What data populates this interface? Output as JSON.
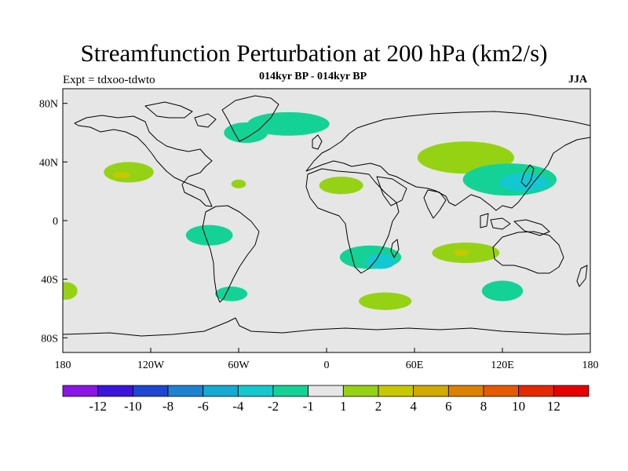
{
  "title": "Streamfunction Perturbation at 200 hPa (km2/s)",
  "subtitle": "014kyr BP - 014kyr BP",
  "experiment": "Expt = tdxoo-tdwto",
  "season": "JJA",
  "map": {
    "projection": "cylindrical equidistant",
    "lon_range": [
      -180,
      180
    ],
    "lat_range": [
      -90,
      90
    ],
    "lon_ticks": [
      "180",
      "120W",
      "60W",
      "0",
      "60E",
      "120E",
      "180"
    ],
    "lat_ticks": [
      "80N",
      "40N",
      "0",
      "40S",
      "80S"
    ],
    "background_color": "#e6e6e6",
    "coastline_color": "#000000"
  },
  "colorbar": {
    "colors": [
      "#8c14e6",
      "#3c14dc",
      "#1e46d2",
      "#1e82d2",
      "#14aad2",
      "#14c8d2",
      "#14d296",
      "#e6e6e6",
      "#96d214",
      "#c8c800",
      "#d2aa00",
      "#dc8200",
      "#e65a00",
      "#e62800",
      "#e60000"
    ],
    "labels": [
      "-12",
      "-10",
      "-8",
      "-6",
      "-4",
      "-2",
      "-1",
      "1",
      "2",
      "4",
      "6",
      "8",
      "10",
      "12"
    ]
  },
  "anomaly_regions": [
    {
      "name": "north-atlantic-negative",
      "level": -1,
      "lon": -26,
      "lat": 66,
      "rx": 28,
      "ry": 8
    },
    {
      "name": "greenland-sea-negative",
      "level": -1,
      "lon": -55,
      "lat": 60,
      "rx": 15,
      "ry": 7
    },
    {
      "name": "north-pacific-positive",
      "level": 1,
      "lon": -135,
      "lat": 33,
      "rx": 17,
      "ry": 7
    },
    {
      "name": "north-pacific-core",
      "level": 2,
      "lon": -140,
      "lat": 31,
      "rx": 6,
      "ry": 2
    },
    {
      "name": "sahara-positive",
      "level": 1,
      "lon": 10,
      "lat": 24,
      "rx": 15,
      "ry": 6
    },
    {
      "name": "asia-positive",
      "level": 1,
      "lon": 95,
      "lat": 43,
      "rx": 33,
      "ry": 11
    },
    {
      "name": "east-asia-negative",
      "level": -1,
      "lon": 125,
      "lat": 28,
      "rx": 32,
      "ry": 11
    },
    {
      "name": "east-asia-core",
      "level": -2,
      "lon": 135,
      "lat": 26,
      "rx": 17,
      "ry": 6
    },
    {
      "name": "south-america-negative",
      "level": -1,
      "lon": -80,
      "lat": -10,
      "rx": 16,
      "ry": 7
    },
    {
      "name": "south-africa-negative",
      "level": -1,
      "lon": 30,
      "lat": -25,
      "rx": 21,
      "ry": 8
    },
    {
      "name": "south-africa-core",
      "level": -2,
      "lon": 37,
      "lat": -28,
      "rx": 10,
      "ry": 5
    },
    {
      "name": "south-indian-ocean-positive",
      "level": 1,
      "lon": 95,
      "lat": -22,
      "rx": 23,
      "ry": 7
    },
    {
      "name": "south-indian-ocean-core",
      "level": 2,
      "lon": 92,
      "lat": -22,
      "rx": 5,
      "ry": 2
    },
    {
      "name": "southern-ocean-positive",
      "level": 1,
      "lon": 40,
      "lat": -55,
      "rx": 18,
      "ry": 6
    },
    {
      "name": "south-pacific-negative",
      "level": -1,
      "lon": -65,
      "lat": -50,
      "rx": 11,
      "ry": 5
    },
    {
      "name": "australia-south-negative",
      "level": -1,
      "lon": 120,
      "lat": -48,
      "rx": 14,
      "ry": 7
    },
    {
      "name": "east-pacific-positive",
      "level": 1,
      "lon": -178,
      "lat": -48,
      "rx": 8,
      "ry": 6
    },
    {
      "name": "west-atlantic-positive",
      "level": 1,
      "lon": -60,
      "lat": 25,
      "rx": 5,
      "ry": 3
    }
  ]
}
